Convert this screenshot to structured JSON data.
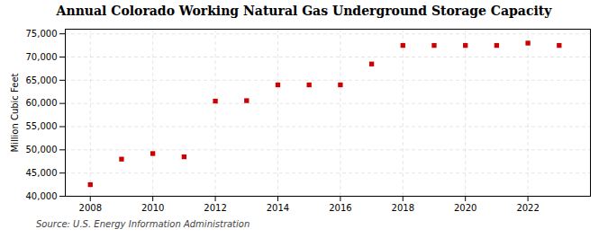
{
  "chart_data": {
    "type": "scatter",
    "title": "Annual Colorado Working Natural Gas Underground Storage Capacity",
    "ylabel": "Million Cubic Feet",
    "source": "Source: U.S. Energy Information Administration",
    "x": [
      2008,
      2009,
      2010,
      2011,
      2012,
      2013,
      2014,
      2015,
      2016,
      2017,
      2018,
      2019,
      2020,
      2021,
      2022,
      2023
    ],
    "values": [
      42500,
      48000,
      49200,
      48500,
      60500,
      60600,
      64000,
      64000,
      64000,
      68500,
      72500,
      72500,
      72500,
      72500,
      73000,
      72500
    ],
    "color": "#cc0000",
    "marker": "square",
    "xlim": [
      2007.2,
      2024.0
    ],
    "xticks": [
      2008,
      2010,
      2012,
      2014,
      2016,
      2018,
      2020,
      2022
    ],
    "ylim": [
      40000,
      76000
    ],
    "yticks": [
      {
        "value": 40000,
        "label": "40,000"
      },
      {
        "value": 45000,
        "label": "45,000"
      },
      {
        "value": 50000,
        "label": "50,000"
      },
      {
        "value": 55000,
        "label": "55,000"
      },
      {
        "value": 60000,
        "label": "60,000"
      },
      {
        "value": 65000,
        "label": "65,000"
      },
      {
        "value": 70000,
        "label": "70,000"
      },
      {
        "value": 75000,
        "label": "75,000"
      }
    ],
    "grid": true
  }
}
